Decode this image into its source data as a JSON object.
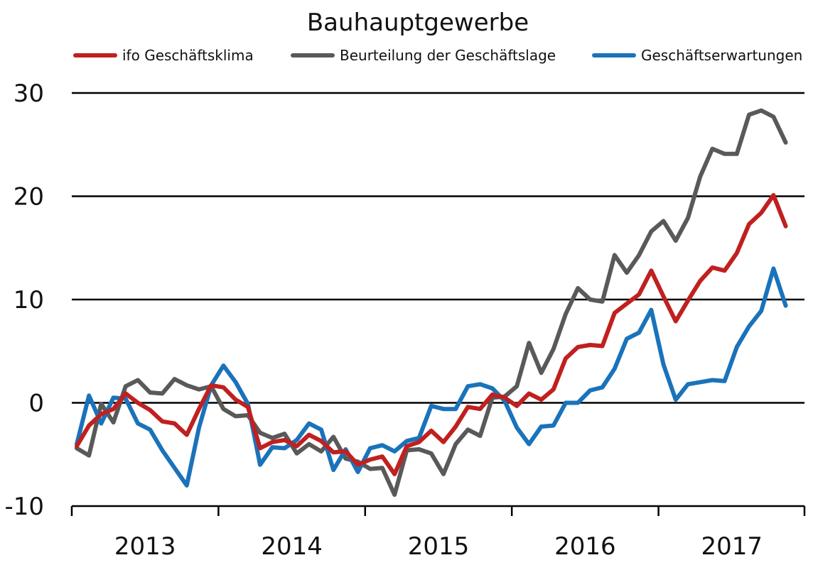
{
  "chart_data": {
    "type": "line",
    "title": "Bauhauptgewerbe",
    "xlabel": "",
    "ylabel": "",
    "ylim": [
      -10,
      30
    ],
    "yticks": [
      -10,
      0,
      10,
      20,
      30
    ],
    "ytick_labels": [
      "-10",
      "0",
      "10",
      "20",
      "30"
    ],
    "xlim": [
      0,
      60
    ],
    "year_labels": [
      "2013",
      "2014",
      "2015",
      "2016",
      "2017"
    ],
    "grid": "horizontal",
    "legend_position": "top",
    "x_unit": "month index (Jan 2013 = 0)",
    "series": [
      {
        "name": "ifo Geschäftsklima",
        "color": "#c0201f",
        "values": [
          -4.2,
          -2.2,
          -1.1,
          -0.6,
          0.9,
          0.0,
          -0.7,
          -1.8,
          -2.0,
          -3.1,
          -0.6,
          1.7,
          1.5,
          0.3,
          -0.4,
          -4.4,
          -3.8,
          -3.6,
          -4.2,
          -3.1,
          -3.7,
          -4.8,
          -4.7,
          -6.0,
          -5.5,
          -5.2,
          -6.9,
          -4.2,
          -3.8,
          -2.7,
          -3.8,
          -2.3,
          -0.4,
          -0.6,
          0.8,
          0.5,
          -0.3,
          0.9,
          0.3,
          1.3,
          4.3,
          5.4,
          5.6,
          5.5,
          8.7,
          9.6,
          10.5,
          12.8,
          10.3,
          7.9,
          9.9,
          11.8,
          13.1,
          12.8,
          14.5,
          17.3,
          18.4,
          20.1,
          17.1
        ]
      },
      {
        "name": "Beurteilung der Geschäftslage",
        "color": "#595959",
        "values": [
          -4.4,
          -5.1,
          -0.1,
          -1.9,
          1.6,
          2.2,
          1.0,
          0.9,
          2.3,
          1.7,
          1.3,
          1.6,
          -0.6,
          -1.3,
          -1.2,
          -2.9,
          -3.4,
          -3.0,
          -4.9,
          -4.0,
          -4.7,
          -3.3,
          -5.4,
          -5.7,
          -6.4,
          -6.3,
          -8.9,
          -4.6,
          -4.5,
          -4.9,
          -6.9,
          -4.0,
          -2.6,
          -3.2,
          0.5,
          0.6,
          1.6,
          5.8,
          2.9,
          5.2,
          8.6,
          11.1,
          10.0,
          9.8,
          14.3,
          12.6,
          14.3,
          16.6,
          17.6,
          15.7,
          17.9,
          21.9,
          24.6,
          24.1,
          24.1,
          27.9,
          28.3,
          27.7,
          25.2
        ]
      },
      {
        "name": "Geschäftserwartungen",
        "color": "#1a73ba",
        "values": [
          -4.0,
          0.7,
          -2.0,
          0.5,
          0.4,
          -2.0,
          -2.6,
          -4.6,
          -6.3,
          -8.0,
          -2.4,
          1.7,
          3.6,
          2.0,
          -0.1,
          -6.0,
          -4.3,
          -4.4,
          -3.6,
          -2.0,
          -2.6,
          -6.5,
          -4.5,
          -6.7,
          -4.4,
          -4.1,
          -4.7,
          -3.7,
          -3.4,
          -0.3,
          -0.6,
          -0.6,
          1.6,
          1.8,
          1.4,
          0.2,
          -2.4,
          -4.0,
          -2.3,
          -2.2,
          0.0,
          0.0,
          1.2,
          1.5,
          3.3,
          6.2,
          6.8,
          9.0,
          3.7,
          0.3,
          1.8,
          2.0,
          2.2,
          2.1,
          5.4,
          7.4,
          8.9,
          13.0,
          9.4
        ]
      }
    ]
  }
}
